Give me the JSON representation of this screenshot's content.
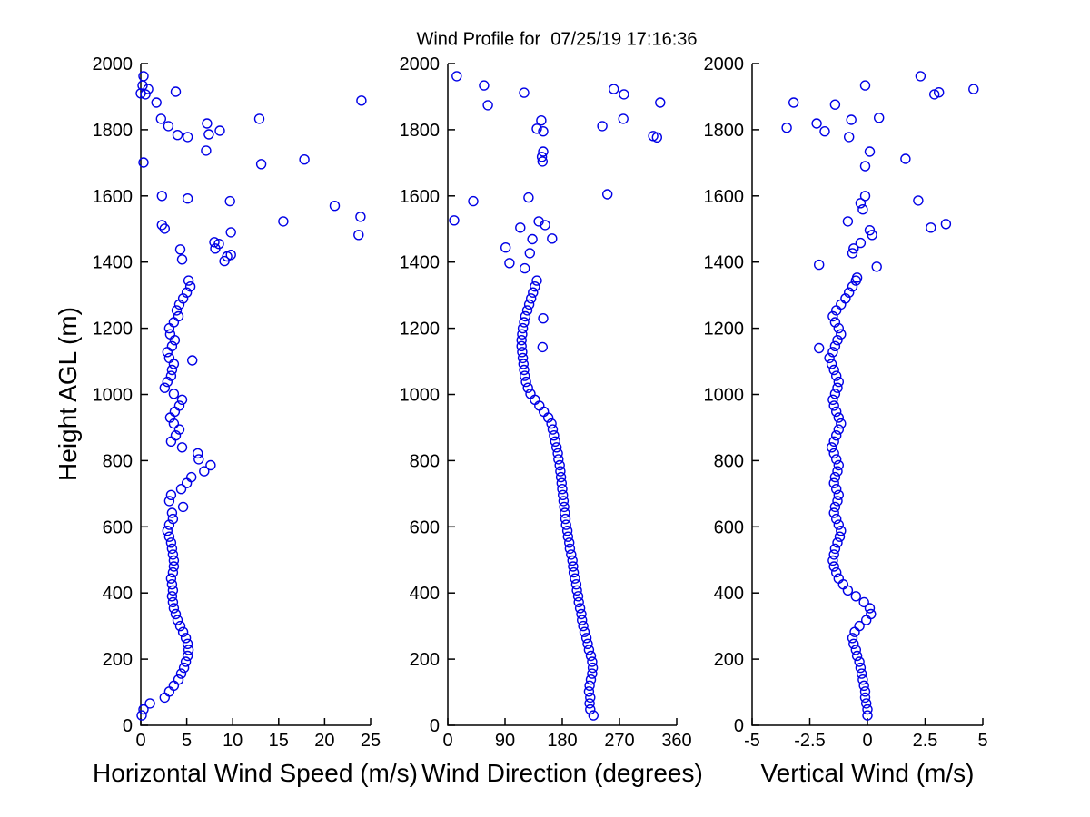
{
  "title": "Wind Profile for  07/25/19 17:16:36",
  "ylabel": "Height AGL (m)",
  "marker_color": "#0000E6",
  "axis_color": "#000000",
  "background": "#FFFFFF",
  "chart_data": [
    {
      "type": "scatter",
      "xlabel": "Horizontal Wind Speed (m/s)",
      "ylabel": "Height AGL (m)",
      "xlim": [
        0,
        25
      ],
      "xticks": [
        0,
        5,
        10,
        15,
        20,
        25
      ],
      "ylim": [
        0,
        2000
      ],
      "yticks": [
        0,
        200,
        400,
        600,
        800,
        1000,
        1200,
        1400,
        1600,
        1800,
        2000
      ],
      "grid": false,
      "marker": "open-circle",
      "points": [
        [
          0.1,
          30
        ],
        [
          0.3,
          48
        ],
        [
          1.0,
          66
        ],
        [
          2.6,
          84
        ],
        [
          3.1,
          102
        ],
        [
          3.6,
          120
        ],
        [
          4.1,
          138
        ],
        [
          4.4,
          156
        ],
        [
          4.7,
          174
        ],
        [
          4.9,
          192
        ],
        [
          5.1,
          210
        ],
        [
          5.2,
          228
        ],
        [
          5.1,
          246
        ],
        [
          4.9,
          264
        ],
        [
          4.6,
          282
        ],
        [
          4.3,
          300
        ],
        [
          4.0,
          318
        ],
        [
          3.8,
          336
        ],
        [
          3.6,
          354
        ],
        [
          3.5,
          372
        ],
        [
          3.4,
          390
        ],
        [
          3.5,
          408
        ],
        [
          3.4,
          426
        ],
        [
          3.3,
          444
        ],
        [
          3.5,
          462
        ],
        [
          3.6,
          480
        ],
        [
          3.6,
          498
        ],
        [
          3.5,
          516
        ],
        [
          3.4,
          534
        ],
        [
          3.3,
          552
        ],
        [
          3.1,
          570
        ],
        [
          2.9,
          588
        ],
        [
          3.1,
          606
        ],
        [
          3.5,
          624
        ],
        [
          3.4,
          642
        ],
        [
          4.6,
          660
        ],
        [
          3.1,
          678
        ],
        [
          3.3,
          696
        ],
        [
          4.4,
          714
        ],
        [
          5.0,
          732
        ],
        [
          5.5,
          750
        ],
        [
          6.9,
          768
        ],
        [
          7.6,
          786
        ],
        [
          6.3,
          804
        ],
        [
          6.2,
          822
        ],
        [
          4.5,
          840
        ],
        [
          3.3,
          858
        ],
        [
          3.8,
          876
        ],
        [
          4.2,
          894
        ],
        [
          3.6,
          912
        ],
        [
          3.2,
          930
        ],
        [
          3.7,
          948
        ],
        [
          4.2,
          966
        ],
        [
          4.5,
          984
        ],
        [
          3.6,
          1002
        ],
        [
          2.6,
          1020
        ],
        [
          2.9,
          1038
        ],
        [
          3.3,
          1056
        ],
        [
          3.4,
          1074
        ],
        [
          3.6,
          1092
        ],
        [
          5.6,
          1103
        ],
        [
          3.1,
          1110
        ],
        [
          2.9,
          1128
        ],
        [
          3.4,
          1146
        ],
        [
          3.7,
          1164
        ],
        [
          3.2,
          1182
        ],
        [
          3.1,
          1200
        ],
        [
          3.6,
          1218
        ],
        [
          4.1,
          1236
        ],
        [
          3.9,
          1254
        ],
        [
          4.2,
          1272
        ],
        [
          4.6,
          1290
        ],
        [
          5.0,
          1308
        ],
        [
          5.4,
          1326
        ],
        [
          5.2,
          1344
        ],
        [
          4.5,
          1408
        ],
        [
          9.1,
          1403
        ],
        [
          8.1,
          1441
        ],
        [
          9.4,
          1417
        ],
        [
          4.3,
          1438
        ],
        [
          8.0,
          1460
        ],
        [
          8.5,
          1455
        ],
        [
          9.8,
          1490
        ],
        [
          9.8,
          1422
        ],
        [
          2.3,
          1512
        ],
        [
          2.6,
          1501
        ],
        [
          15.5,
          1523
        ],
        [
          23.9,
          1537
        ],
        [
          23.7,
          1482
        ],
        [
          2.3,
          1600
        ],
        [
          5.1,
          1592
        ],
        [
          9.7,
          1584
        ],
        [
          21.1,
          1570
        ],
        [
          0.3,
          1701
        ],
        [
          17.8,
          1710
        ],
        [
          13.1,
          1696
        ],
        [
          7.1,
          1737
        ],
        [
          4.0,
          1784
        ],
        [
          5.1,
          1778
        ],
        [
          7.4,
          1786
        ],
        [
          8.6,
          1797
        ],
        [
          3.0,
          1811
        ],
        [
          7.2,
          1819
        ],
        [
          2.2,
          1833
        ],
        [
          12.9,
          1833
        ],
        [
          24.0,
          1888
        ],
        [
          1.7,
          1882
        ],
        [
          3.8,
          1915
        ],
        [
          0.8,
          1923
        ],
        [
          0.5,
          1907
        ],
        [
          0.0,
          1910
        ],
        [
          0.2,
          1934
        ],
        [
          0.3,
          1962
        ]
      ]
    },
    {
      "type": "scatter",
      "xlabel": "Wind Direction (degrees)",
      "ylabel": "Height AGL (m)",
      "xlim": [
        0,
        360
      ],
      "xticks": [
        0,
        90,
        180,
        270,
        360
      ],
      "ylim": [
        0,
        2000
      ],
      "yticks": [
        0,
        200,
        400,
        600,
        800,
        1000,
        1200,
        1400,
        1600,
        1800,
        2000
      ],
      "grid": false,
      "marker": "open-circle",
      "points": [
        [
          229,
          30
        ],
        [
          224,
          48
        ],
        [
          223,
          66
        ],
        [
          224,
          84
        ],
        [
          222,
          102
        ],
        [
          223,
          120
        ],
        [
          225,
          138
        ],
        [
          227,
          156
        ],
        [
          228,
          174
        ],
        [
          227,
          192
        ],
        [
          225,
          210
        ],
        [
          222,
          228
        ],
        [
          220,
          246
        ],
        [
          218,
          264
        ],
        [
          215,
          282
        ],
        [
          213,
          300
        ],
        [
          211,
          318
        ],
        [
          210,
          336
        ],
        [
          208,
          354
        ],
        [
          206,
          372
        ],
        [
          205,
          390
        ],
        [
          203,
          408
        ],
        [
          202,
          426
        ],
        [
          200,
          444
        ],
        [
          198,
          462
        ],
        [
          197,
          480
        ],
        [
          196,
          498
        ],
        [
          194,
          516
        ],
        [
          192,
          534
        ],
        [
          191,
          552
        ],
        [
          189,
          570
        ],
        [
          188,
          588
        ],
        [
          186,
          606
        ],
        [
          185,
          624
        ],
        [
          184,
          642
        ],
        [
          183,
          660
        ],
        [
          182,
          678
        ],
        [
          181,
          696
        ],
        [
          180,
          714
        ],
        [
          179,
          732
        ],
        [
          178,
          750
        ],
        [
          177,
          768
        ],
        [
          176,
          786
        ],
        [
          174,
          804
        ],
        [
          173,
          822
        ],
        [
          171,
          840
        ],
        [
          169,
          858
        ],
        [
          167,
          876
        ],
        [
          165,
          894
        ],
        [
          163,
          912
        ],
        [
          158,
          930
        ],
        [
          151,
          948
        ],
        [
          144,
          966
        ],
        [
          137,
          984
        ],
        [
          130,
          1002
        ],
        [
          126,
          1020
        ],
        [
          123,
          1038
        ],
        [
          121,
          1056
        ],
        [
          120,
          1074
        ],
        [
          119,
          1092
        ],
        [
          118,
          1110
        ],
        [
          117,
          1128
        ],
        [
          116,
          1146
        ],
        [
          116,
          1164
        ],
        [
          117,
          1182
        ],
        [
          118,
          1200
        ],
        [
          120,
          1218
        ],
        [
          122,
          1236
        ],
        [
          125,
          1254
        ],
        [
          128,
          1272
        ],
        [
          131,
          1290
        ],
        [
          134,
          1308
        ],
        [
          137,
          1326
        ],
        [
          140,
          1344
        ],
        [
          149,
          1143
        ],
        [
          150,
          1230
        ],
        [
          121,
          1381
        ],
        [
          97,
          1397
        ],
        [
          129,
          1427
        ],
        [
          91,
          1444
        ],
        [
          133,
          1469
        ],
        [
          164,
          1471
        ],
        [
          153,
          1512
        ],
        [
          143,
          1523
        ],
        [
          114,
          1504
        ],
        [
          10,
          1526
        ],
        [
          40,
          1584
        ],
        [
          127,
          1595
        ],
        [
          251,
          1605
        ],
        [
          150,
          1734
        ],
        [
          149,
          1704
        ],
        [
          148,
          1718
        ],
        [
          323,
          1781
        ],
        [
          329,
          1777
        ],
        [
          243,
          1811
        ],
        [
          276,
          1833
        ],
        [
          140,
          1803
        ],
        [
          150,
          1795
        ],
        [
          147,
          1828
        ],
        [
          334,
          1882
        ],
        [
          277,
          1907
        ],
        [
          261,
          1923
        ],
        [
          120,
          1912
        ],
        [
          63,
          1874
        ],
        [
          57,
          1934
        ],
        [
          14,
          1962
        ]
      ]
    },
    {
      "type": "scatter",
      "xlabel": "Vertical Wind (m/s)",
      "ylabel": "Height AGL (m)",
      "xlim": [
        -5,
        5
      ],
      "xticks": [
        -5,
        -2.5,
        0,
        2.5,
        5
      ],
      "ylim": [
        0,
        2000
      ],
      "yticks": [
        0,
        200,
        400,
        600,
        800,
        1000,
        1200,
        1400,
        1600,
        1800,
        2000
      ],
      "grid": false,
      "marker": "open-circle",
      "points": [
        [
          0.0,
          30
        ],
        [
          0.0,
          48
        ],
        [
          -0.05,
          66
        ],
        [
          -0.1,
          84
        ],
        [
          -0.1,
          102
        ],
        [
          -0.15,
          120
        ],
        [
          -0.2,
          138
        ],
        [
          -0.25,
          156
        ],
        [
          -0.3,
          174
        ],
        [
          -0.35,
          192
        ],
        [
          -0.45,
          210
        ],
        [
          -0.5,
          228
        ],
        [
          -0.6,
          246
        ],
        [
          -0.65,
          264
        ],
        [
          -0.55,
          282
        ],
        [
          -0.35,
          300
        ],
        [
          -0.05,
          318
        ],
        [
          0.15,
          336
        ],
        [
          0.1,
          354
        ],
        [
          -0.15,
          372
        ],
        [
          -0.5,
          390
        ],
        [
          -0.85,
          408
        ],
        [
          -1.05,
          426
        ],
        [
          -1.25,
          444
        ],
        [
          -1.35,
          462
        ],
        [
          -1.45,
          480
        ],
        [
          -1.5,
          498
        ],
        [
          -1.45,
          516
        ],
        [
          -1.4,
          534
        ],
        [
          -1.3,
          552
        ],
        [
          -1.2,
          570
        ],
        [
          -1.15,
          588
        ],
        [
          -1.25,
          606
        ],
        [
          -1.35,
          624
        ],
        [
          -1.45,
          642
        ],
        [
          -1.4,
          660
        ],
        [
          -1.3,
          678
        ],
        [
          -1.25,
          696
        ],
        [
          -1.35,
          714
        ],
        [
          -1.45,
          732
        ],
        [
          -1.4,
          750
        ],
        [
          -1.3,
          768
        ],
        [
          -1.25,
          786
        ],
        [
          -1.35,
          804
        ],
        [
          -1.45,
          822
        ],
        [
          -1.55,
          840
        ],
        [
          -1.45,
          858
        ],
        [
          -1.35,
          876
        ],
        [
          -1.25,
          894
        ],
        [
          -1.15,
          912
        ],
        [
          -1.25,
          930
        ],
        [
          -1.35,
          948
        ],
        [
          -1.45,
          966
        ],
        [
          -1.5,
          984
        ],
        [
          -1.4,
          1002
        ],
        [
          -1.3,
          1020
        ],
        [
          -1.25,
          1038
        ],
        [
          -1.35,
          1056
        ],
        [
          -1.45,
          1074
        ],
        [
          -1.55,
          1092
        ],
        [
          -1.65,
          1110
        ],
        [
          -2.1,
          1140
        ],
        [
          -1.5,
          1128
        ],
        [
          -1.4,
          1146
        ],
        [
          -1.3,
          1164
        ],
        [
          -1.15,
          1182
        ],
        [
          -1.25,
          1200
        ],
        [
          -1.4,
          1218
        ],
        [
          -1.5,
          1236
        ],
        [
          -1.35,
          1254
        ],
        [
          -1.15,
          1272
        ],
        [
          -0.95,
          1290
        ],
        [
          -0.8,
          1308
        ],
        [
          -0.65,
          1326
        ],
        [
          -0.5,
          1344
        ],
        [
          -2.1,
          1392
        ],
        [
          0.4,
          1386
        ],
        [
          -0.45,
          1353
        ],
        [
          -0.65,
          1427
        ],
        [
          -0.6,
          1441
        ],
        [
          -0.3,
          1458
        ],
        [
          0.2,
          1482
        ],
        [
          0.1,
          1496
        ],
        [
          -0.85,
          1523
        ],
        [
          -0.2,
          1559
        ],
        [
          -0.3,
          1578
        ],
        [
          -0.1,
          1600
        ],
        [
          2.2,
          1586
        ],
        [
          3.4,
          1515
        ],
        [
          2.75,
          1504
        ],
        [
          1.65,
          1712
        ],
        [
          -0.1,
          1690
        ],
        [
          0.1,
          1734
        ],
        [
          -0.8,
          1778
        ],
        [
          -1.85,
          1795
        ],
        [
          -2.2,
          1819
        ],
        [
          -3.5,
          1806
        ],
        [
          0.5,
          1836
        ],
        [
          -0.7,
          1830
        ],
        [
          -1.4,
          1876
        ],
        [
          -3.2,
          1882
        ],
        [
          4.6,
          1923
        ],
        [
          2.9,
          1907
        ],
        [
          3.1,
          1913
        ],
        [
          -0.1,
          1934
        ],
        [
          2.3,
          1962
        ]
      ]
    }
  ]
}
